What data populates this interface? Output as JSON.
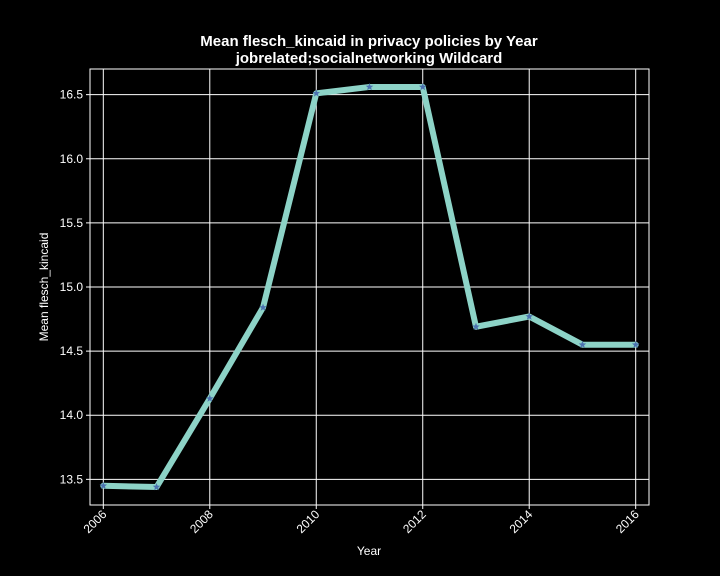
{
  "chart_data": {
    "type": "line",
    "title": "Mean flesch_kincaid in privacy policies by Year",
    "subtitle": "jobrelated;socialnetworking Wildcard",
    "xlabel": "Year",
    "ylabel": "Mean flesch_kincaid",
    "x": [
      2006,
      2007,
      2008,
      2009,
      2010,
      2011,
      2012,
      2013,
      2014,
      2015,
      2016
    ],
    "series": [
      {
        "values": [
          13.45,
          13.44,
          14.13,
          14.84,
          16.51,
          16.56,
          16.56,
          14.69,
          14.77,
          14.55,
          14.55
        ]
      }
    ],
    "xticks": [
      2006,
      2008,
      2010,
      2012,
      2014,
      2016
    ],
    "yticks": [
      13.5,
      14.0,
      14.5,
      15.0,
      15.5,
      16.0,
      16.5
    ],
    "ytick_labels": [
      "13.5",
      "14.0",
      "14.5",
      "15.0",
      "15.5",
      "16.0",
      "16.5"
    ],
    "xlim": [
      2005.75,
      2016.25
    ],
    "ylim": [
      13.3,
      16.7
    ],
    "grid": true,
    "line_color": "#8dd3c7",
    "marker_color": "#4c72b0",
    "marker": "star",
    "background": "#000000",
    "foreground": "#ffffff"
  }
}
